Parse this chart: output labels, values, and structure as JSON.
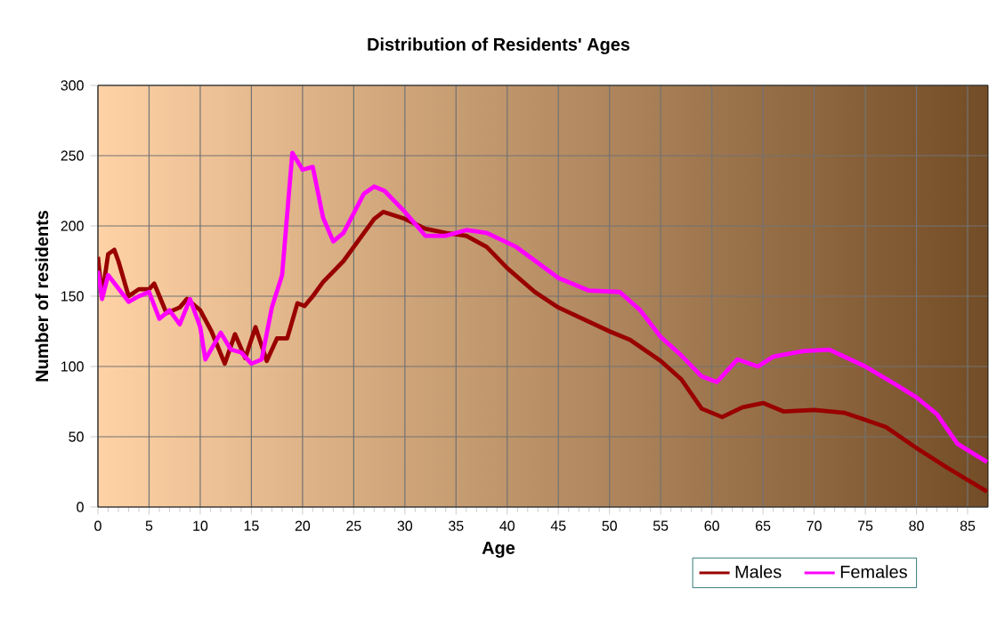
{
  "chart_data": {
    "type": "line",
    "title": "Distribution of Residents' Ages",
    "xlabel": "Age",
    "ylabel": "Number of residents",
    "xlim": [
      0,
      87
    ],
    "ylim": [
      0,
      300
    ],
    "xticks": [
      0,
      5,
      10,
      15,
      20,
      25,
      30,
      35,
      40,
      45,
      50,
      55,
      60,
      65,
      70,
      75,
      80,
      85
    ],
    "yticks": [
      0,
      50,
      100,
      150,
      200,
      250,
      300
    ],
    "grid": true,
    "legend": "bottom right",
    "marker": "none",
    "line_style": "solid",
    "series": [
      {
        "name": "Males",
        "color": "#990000",
        "x": [
          0,
          0.4,
          1,
          1.6,
          2,
          3,
          4,
          5,
          5.5,
          6.7,
          8,
          8.7,
          10,
          11.1,
          12.4,
          13.4,
          14.4,
          15.4,
          16.5,
          17.5,
          18.5,
          19.5,
          20.2,
          21,
          22,
          24,
          26,
          27,
          27.9,
          30,
          32,
          34,
          36,
          38,
          40,
          42.7,
          45,
          50,
          52,
          55,
          57,
          59,
          61,
          63,
          65,
          67,
          70,
          73,
          75,
          77,
          80,
          83,
          86.9
        ],
        "values": [
          178,
          150,
          180,
          183,
          175,
          150,
          155,
          155,
          159,
          138,
          142,
          148,
          140,
          125,
          102,
          123,
          106,
          128,
          104,
          120,
          120,
          145,
          143,
          150,
          160,
          175,
          195,
          205,
          210,
          205,
          198,
          195,
          193,
          185,
          170,
          153,
          142,
          125,
          119,
          104,
          91,
          70,
          64,
          71,
          74,
          68,
          69,
          67,
          62,
          57,
          42,
          28,
          11
        ]
      },
      {
        "name": "Females",
        "color": "#ff00ff",
        "x": [
          0,
          0.4,
          1,
          3,
          4,
          5,
          6,
          7,
          8,
          9,
          10,
          10.5,
          12,
          13,
          14,
          15,
          16,
          17,
          18,
          19,
          20,
          21,
          22,
          23,
          24,
          26,
          27,
          28,
          30,
          32,
          34,
          36,
          38,
          40.9,
          45,
          48,
          51,
          53,
          55,
          57,
          59,
          60.5,
          62.5,
          64.5,
          66,
          69,
          71.5,
          75,
          78,
          80,
          82,
          84,
          86.9
        ],
        "values": [
          168,
          148,
          165,
          146,
          150,
          153,
          134,
          140,
          130,
          148,
          128,
          105,
          124,
          112,
          110,
          102,
          105,
          142,
          165,
          252,
          240,
          242,
          206,
          189,
          195,
          223,
          228,
          225,
          210,
          193,
          193,
          197,
          195,
          185,
          163,
          154,
          153,
          140,
          121,
          108,
          93,
          89,
          105,
          100,
          107,
          111,
          112,
          100,
          87,
          78,
          66,
          45,
          32
        ]
      }
    ]
  }
}
